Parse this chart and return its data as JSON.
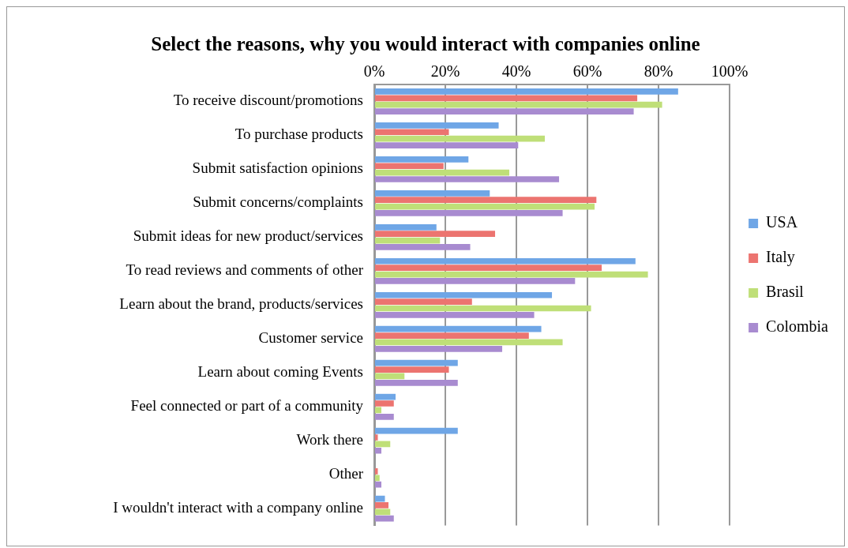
{
  "chart_data": {
    "type": "bar",
    "orientation": "horizontal",
    "title": "Select the reasons, why you would interact with companies online",
    "categories": [
      "To receive discount/promotions",
      "To purchase products",
      "Submit satisfaction opinions",
      "Submit concerns/complaints",
      "Submit ideas for new product/services",
      "To read reviews and comments of other",
      "Learn about the brand, products/services",
      "Customer service",
      "Learn about coming Events",
      "Feel connected or part of a community",
      "Work there",
      "Other",
      "I wouldn't interact with a company online"
    ],
    "series": [
      {
        "name": "USA",
        "color": "#6fa6e6",
        "values": [
          85.5,
          35,
          26.5,
          32.5,
          17.5,
          73.5,
          50,
          47,
          23.5,
          6,
          23.5,
          0,
          3
        ]
      },
      {
        "name": "Italy",
        "color": "#ec7470",
        "values": [
          74,
          21,
          19.5,
          62.5,
          34,
          64,
          27.5,
          43.5,
          21,
          5.5,
          1,
          1,
          4
        ]
      },
      {
        "name": "Brasil",
        "color": "#bfdf78",
        "values": [
          81,
          48,
          38,
          62,
          18.5,
          77,
          61,
          53,
          8.5,
          2,
          4.5,
          1.5,
          4.5
        ]
      },
      {
        "name": "Colombia",
        "color": "#a88bd0",
        "values": [
          73,
          40.5,
          52,
          53,
          27,
          56.5,
          45,
          36,
          23.5,
          5.5,
          2,
          2,
          5.5
        ]
      }
    ],
    "xlim": [
      0,
      100
    ],
    "xticks": [
      {
        "value": 0,
        "label": "0%"
      },
      {
        "value": 20,
        "label": "20%"
      },
      {
        "value": 40,
        "label": "40%"
      },
      {
        "value": 60,
        "label": "60%"
      },
      {
        "value": 80,
        "label": "80%"
      },
      {
        "value": 100,
        "label": "100%"
      }
    ],
    "grid": "x",
    "legend": "right"
  }
}
